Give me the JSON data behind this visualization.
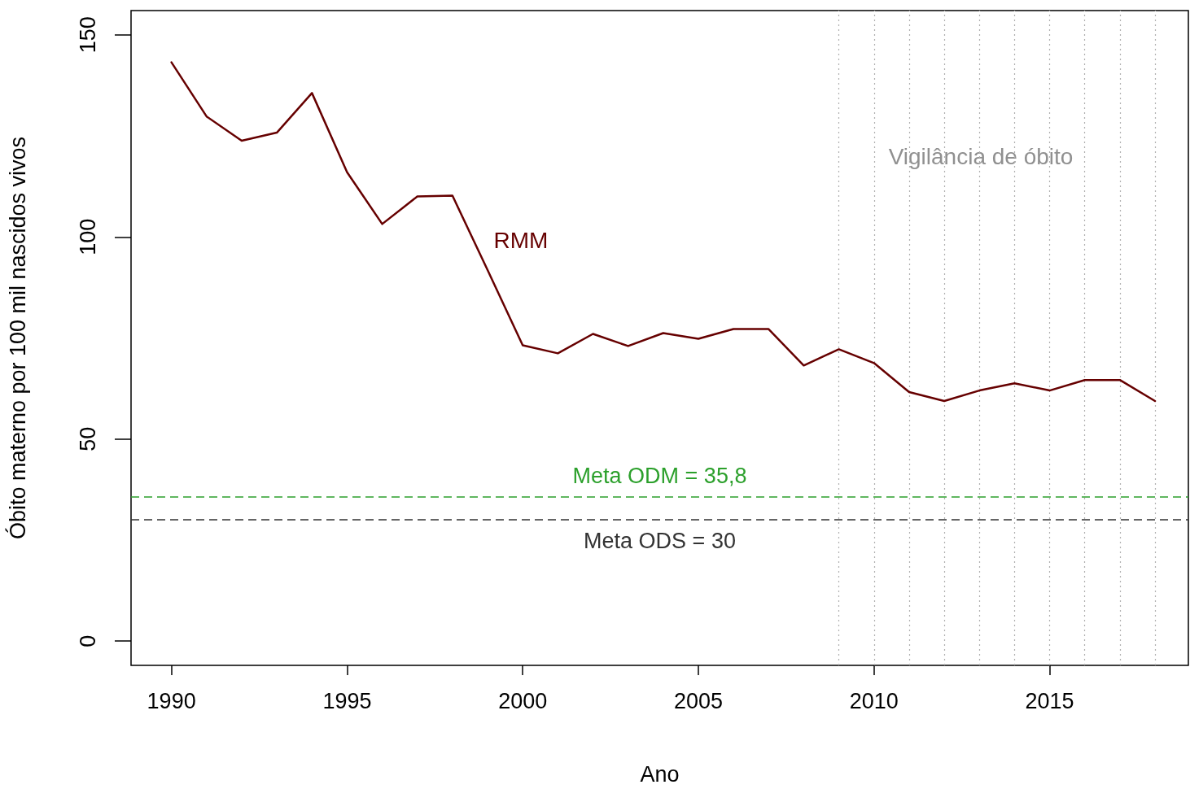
{
  "chart_data": {
    "type": "line",
    "xlabel": "Ano",
    "ylabel": "Óbito materno por 100 mil nascidos vivos",
    "x": [
      1990,
      1991,
      1992,
      1993,
      1994,
      1995,
      1996,
      1997,
      1998,
      1999,
      2000,
      2001,
      2002,
      2003,
      2004,
      2005,
      2006,
      2007,
      2008,
      2009,
      2010,
      2011,
      2012,
      2013,
      2014,
      2015,
      2016,
      2017,
      2018
    ],
    "series": [
      {
        "name": "RMM",
        "color": "#660000",
        "values": [
          143.2,
          129.8,
          123.8,
          125.8,
          135.6,
          116,
          103.2,
          110,
          110.2,
          91.8,
          73.2,
          71.2,
          76,
          73,
          76.2,
          74.8,
          77.2,
          77.2,
          68.2,
          72.2,
          68.8,
          61.6,
          59.4,
          62,
          63.8,
          62,
          64.6,
          64.6,
          59.4
        ]
      }
    ],
    "xlim": [
      1988.85,
      2018.95
    ],
    "ylim": [
      -6,
      156
    ],
    "xticks": [
      1990,
      1995,
      2000,
      2005,
      2010,
      2015
    ],
    "yticks": [
      0,
      50,
      100,
      150
    ],
    "grid": false,
    "marker": "none",
    "line_style": "solid",
    "ref_lines": [
      {
        "axis": "y",
        "value": 35.8,
        "label": "Meta ODM = 35,8",
        "color": "#2ca02c",
        "line_style": "dashed"
      },
      {
        "axis": "y",
        "value": 30,
        "label": "Meta ODS = 30",
        "color": "#333333",
        "line_style": "dashed"
      },
      {
        "axis": "x",
        "value": 2009,
        "color": "#b0b0b0",
        "line_style": "dotted"
      },
      {
        "axis": "x",
        "value": 2010,
        "color": "#b0b0b0",
        "line_style": "dotted"
      },
      {
        "axis": "x",
        "value": 2011,
        "color": "#b0b0b0",
        "line_style": "dotted"
      },
      {
        "axis": "x",
        "value": 2012,
        "color": "#b0b0b0",
        "line_style": "dotted"
      },
      {
        "axis": "x",
        "value": 2013,
        "color": "#b0b0b0",
        "line_style": "dotted"
      },
      {
        "axis": "x",
        "value": 2014,
        "color": "#b0b0b0",
        "line_style": "dotted"
      },
      {
        "axis": "x",
        "value": 2015,
        "color": "#b0b0b0",
        "line_style": "dotted"
      },
      {
        "axis": "x",
        "value": 2016,
        "color": "#b0b0b0",
        "line_style": "dotted"
      },
      {
        "axis": "x",
        "value": 2017,
        "color": "#b0b0b0",
        "line_style": "dotted"
      },
      {
        "axis": "x",
        "value": 2018,
        "color": "#b0b0b0",
        "line_style": "dotted"
      }
    ],
    "annotations": [
      "Vigilância de óbito"
    ]
  }
}
